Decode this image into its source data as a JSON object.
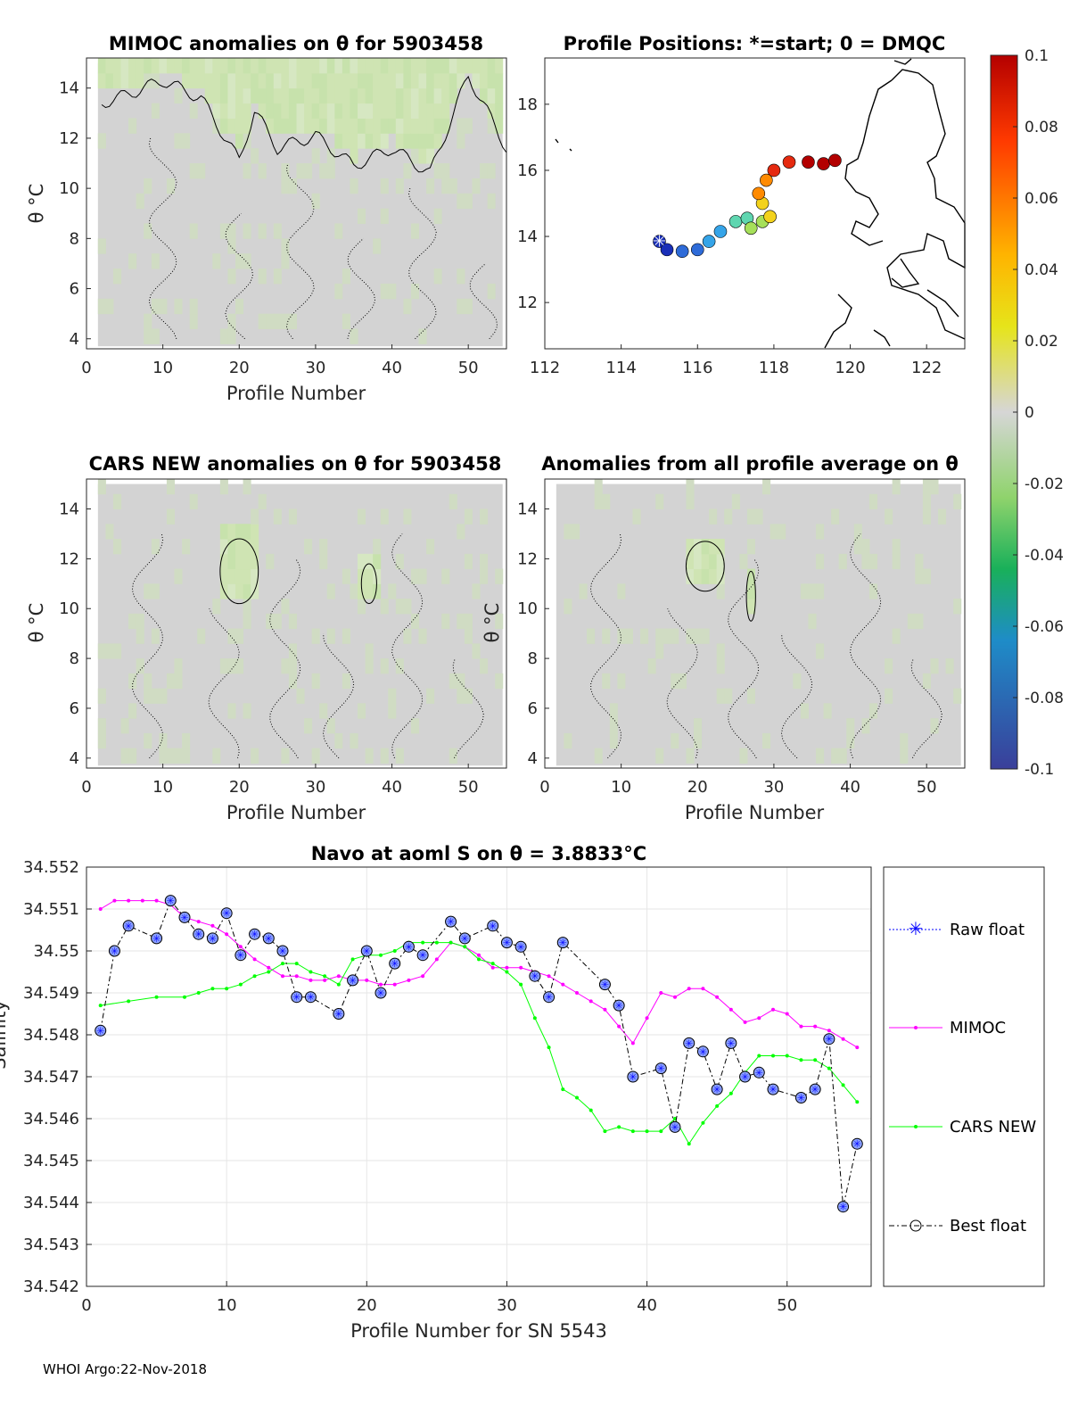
{
  "colors": {
    "raw": "#0000ff",
    "mimoc": "#ff00ff",
    "cars": "#00ff00",
    "best": "#000000",
    "anomaly_bg": "#d3d3d3",
    "anomaly_green": "#cfe3b4"
  },
  "chart_data": [
    {
      "id": "mimoc_anom",
      "type": "heatmap",
      "title": "MIMOC anomalies on θ  for 5903458",
      "xlabel": "Profile Number",
      "ylabel": "θ °C",
      "xlim": [
        0,
        55
      ],
      "ylim": [
        3.6,
        15.2
      ],
      "xticks": [
        0,
        10,
        20,
        30,
        40,
        50
      ],
      "yticks": [
        4,
        6,
        8,
        10,
        12,
        14
      ],
      "green_region_top": [
        [
          2,
          13.4
        ],
        [
          5,
          13.7
        ],
        [
          10,
          14.3
        ],
        [
          15,
          13.6
        ],
        [
          20,
          11.1
        ],
        [
          22,
          13.1
        ],
        [
          25,
          11.6
        ],
        [
          30,
          12.1
        ],
        [
          35,
          10.9
        ],
        [
          40,
          11.6
        ],
        [
          45,
          10.6
        ],
        [
          50,
          14.5
        ],
        [
          55,
          11.6
        ]
      ]
    },
    {
      "id": "positions",
      "type": "scatter",
      "title": "Profile Positions: *=start; 0 = DMQC",
      "xlim": [
        112,
        123
      ],
      "ylim": [
        10.6,
        19.4
      ],
      "xticks": [
        112,
        114,
        116,
        118,
        120,
        122
      ],
      "yticks": [
        12,
        14,
        16,
        18
      ],
      "track": [
        [
          115.0,
          13.85
        ],
        [
          115.2,
          13.6
        ],
        [
          115.6,
          13.55
        ],
        [
          116.0,
          13.6
        ],
        [
          116.3,
          13.85
        ],
        [
          116.6,
          14.15
        ],
        [
          117.0,
          14.45
        ],
        [
          117.3,
          14.55
        ],
        [
          117.7,
          14.45
        ],
        [
          117.4,
          14.25
        ],
        [
          117.9,
          14.6
        ],
        [
          117.7,
          15.0
        ],
        [
          117.6,
          15.3
        ],
        [
          117.8,
          15.7
        ],
        [
          118.0,
          16.0
        ],
        [
          118.4,
          16.25
        ],
        [
          118.9,
          16.25
        ],
        [
          119.3,
          16.2
        ],
        [
          119.6,
          16.3
        ]
      ]
    },
    {
      "id": "cars_anom",
      "type": "heatmap",
      "title": "CARS NEW anomalies on θ for 5903458",
      "xlabel": "Profile Number",
      "ylabel": "θ °C",
      "xlim": [
        0,
        55
      ],
      "ylim": [
        3.6,
        15.2
      ],
      "xticks": [
        0,
        10,
        20,
        30,
        40,
        50
      ],
      "yticks": [
        4,
        6,
        8,
        10,
        12,
        14
      ]
    },
    {
      "id": "avg_anom",
      "type": "heatmap",
      "title": "Anomalies from all profile average on θ",
      "xlabel": "Profile Number",
      "ylabel": "θ °C",
      "xlim": [
        0,
        55
      ],
      "ylim": [
        3.6,
        15.2
      ],
      "xticks": [
        0,
        10,
        20,
        30,
        40,
        50
      ],
      "yticks": [
        4,
        6,
        8,
        10,
        12,
        14
      ]
    },
    {
      "id": "colorbar",
      "type": "colorbar",
      "range": [
        -0.1,
        0.1
      ],
      "ticks": [
        "0.1",
        "0.08",
        "0.06",
        "0.04",
        "0.02",
        "0",
        "-0.02",
        "-0.04",
        "-0.06",
        "-0.08",
        "-0.1"
      ]
    },
    {
      "id": "salinity",
      "type": "line",
      "title": "Navo at aoml S on θ = 3.8833°C",
      "xlabel": "Profile Number for SN 5543",
      "ylabel": "Salinity",
      "xlim": [
        0,
        56
      ],
      "ylim": [
        34.542,
        34.552
      ],
      "xticks": [
        0,
        10,
        20,
        30,
        40,
        50
      ],
      "yticks": [
        "34.542",
        "34.543",
        "34.544",
        "34.545",
        "34.546",
        "34.547",
        "34.548",
        "34.549",
        "34.55",
        "34.551",
        "34.552"
      ],
      "legend": [
        "Raw float",
        "MIMOC",
        "CARS NEW",
        "Best float"
      ],
      "series": [
        {
          "name": "Best float",
          "x": [
            1,
            2,
            3,
            5,
            6,
            7,
            8,
            9,
            10,
            11,
            12,
            13,
            14,
            15,
            16,
            18,
            19,
            20,
            21,
            22,
            23,
            24,
            26,
            27,
            29,
            30,
            31,
            32,
            33,
            34,
            37,
            38,
            39,
            41,
            42,
            43,
            44,
            45,
            46,
            47,
            48,
            49,
            51,
            52,
            53,
            54,
            55
          ],
          "y": [
            34.5481,
            34.55,
            34.5506,
            34.5503,
            34.5512,
            34.5508,
            34.5504,
            34.5503,
            34.5509,
            34.5499,
            34.5504,
            34.5503,
            34.55,
            34.5489,
            34.5489,
            34.5485,
            34.5493,
            34.55,
            34.549,
            34.5497,
            34.5501,
            34.5499,
            34.5507,
            34.5503,
            34.5506,
            34.5502,
            34.5501,
            34.5494,
            34.5489,
            34.5502,
            34.5492,
            34.5487,
            34.547,
            34.5472,
            34.5458,
            34.5478,
            34.5476,
            34.5467,
            34.5478,
            34.547,
            34.5471,
            34.5467,
            34.5465,
            34.5467,
            34.5479,
            34.5439,
            34.5454
          ]
        },
        {
          "name": "MIMOC",
          "x": [
            1,
            2,
            3,
            4,
            5,
            6,
            7,
            8,
            9,
            10,
            11,
            12,
            13,
            14,
            15,
            16,
            17,
            18,
            19,
            20,
            21,
            22,
            23,
            24,
            25,
            26,
            27,
            28,
            29,
            30,
            31,
            32,
            33,
            34,
            35,
            36,
            37,
            38,
            39,
            40,
            41,
            42,
            43,
            44,
            45,
            46,
            47,
            48,
            49,
            50,
            51,
            52,
            53,
            54,
            55
          ],
          "y": [
            34.551,
            34.5512,
            34.5512,
            34.5512,
            34.5512,
            34.5511,
            34.5508,
            34.5507,
            34.5506,
            34.5504,
            34.5501,
            34.5498,
            34.5496,
            34.5494,
            34.5494,
            34.5493,
            34.5493,
            34.5494,
            34.5493,
            34.5493,
            34.5492,
            34.5492,
            34.5493,
            34.5494,
            34.5498,
            34.5502,
            34.5501,
            34.5499,
            34.5496,
            34.5496,
            34.5496,
            34.5495,
            34.5494,
            34.5492,
            34.549,
            34.5488,
            34.5486,
            34.5482,
            34.5478,
            34.5484,
            34.549,
            34.5489,
            34.5491,
            34.5491,
            34.5489,
            34.5486,
            34.5483,
            34.5484,
            34.5486,
            34.5485,
            34.5482,
            34.5482,
            34.5481,
            34.5479,
            34.5477
          ]
        },
        {
          "name": "CARS NEW",
          "x": [
            1,
            3,
            5,
            7,
            8,
            9,
            10,
            11,
            12,
            13,
            14,
            15,
            16,
            17,
            18,
            19,
            20,
            21,
            22,
            23,
            24,
            25,
            26,
            27,
            28,
            29,
            30,
            31,
            32,
            33,
            34,
            35,
            36,
            37,
            38,
            39,
            40,
            41,
            42,
            43,
            44,
            45,
            46,
            47,
            48,
            49,
            50,
            51,
            52,
            53,
            54,
            55
          ],
          "y": [
            34.5487,
            34.5488,
            34.5489,
            34.5489,
            34.549,
            34.5491,
            34.5491,
            34.5492,
            34.5494,
            34.5495,
            34.5497,
            34.5497,
            34.5495,
            34.5494,
            34.5492,
            34.5498,
            34.5499,
            34.5499,
            34.55,
            34.5502,
            34.5502,
            34.5502,
            34.5502,
            34.5501,
            34.5498,
            34.5497,
            34.5495,
            34.5492,
            34.5484,
            34.5477,
            34.5467,
            34.5465,
            34.5462,
            34.5457,
            34.5458,
            34.5457,
            34.5457,
            34.5457,
            34.546,
            34.5454,
            34.5459,
            34.5463,
            34.5466,
            34.5471,
            34.5475,
            34.5475,
            34.5475,
            34.5474,
            34.5474,
            34.5472,
            34.5468,
            34.5464
          ]
        }
      ]
    }
  ],
  "footer": "WHOI Argo:22-Nov-2018"
}
